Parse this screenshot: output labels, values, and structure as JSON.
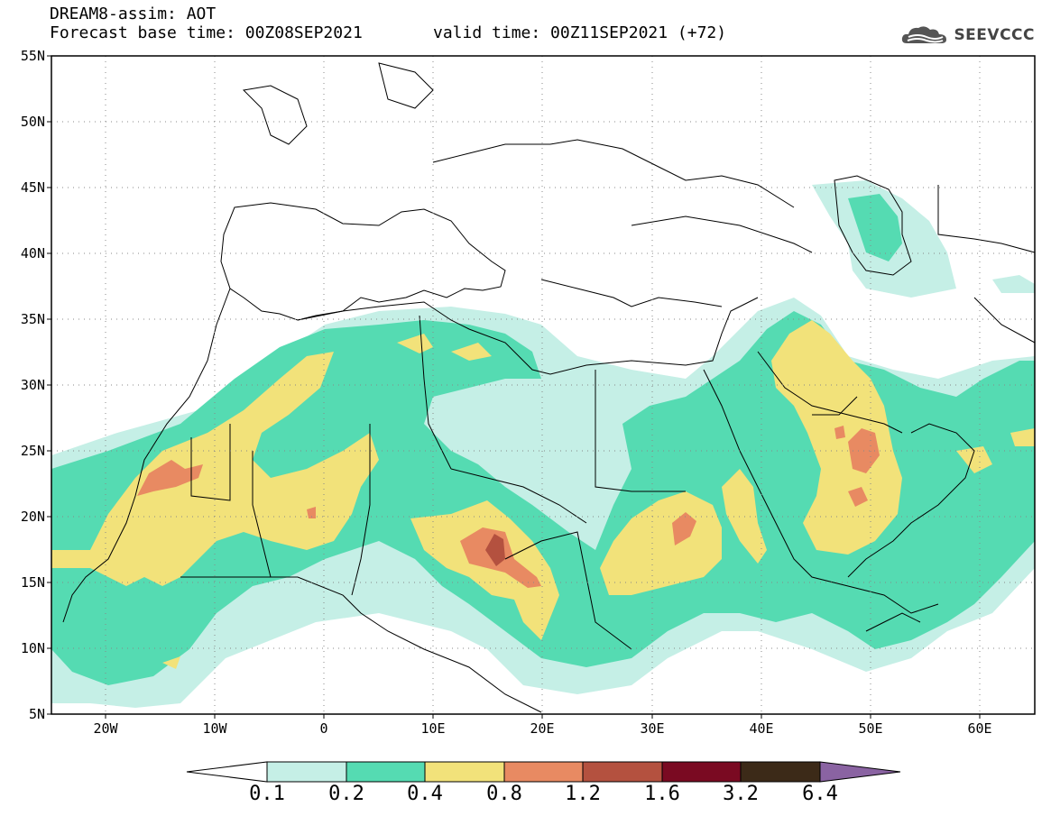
{
  "title": {
    "line1": "DREAM8-assim: AOT",
    "line2": "Forecast base time: 00Z08SEP2021",
    "valid": "valid time: 00Z11SEP2021 (+72)"
  },
  "logo": {
    "text": "SEEVCCC",
    "icon": "cloud-icon"
  },
  "axes": {
    "lat_ticks": [
      "55N",
      "50N",
      "45N",
      "40N",
      "35N",
      "30N",
      "25N",
      "20N",
      "15N",
      "10N",
      "5N"
    ],
    "lon_ticks": [
      "20W",
      "10W",
      "0",
      "10E",
      "20E",
      "30E",
      "40E",
      "50E",
      "60E"
    ],
    "lon_range": [
      -25,
      65
    ],
    "lat_range": [
      5,
      55
    ],
    "grid": "dotted"
  },
  "colorbar": {
    "labels": [
      "0.1",
      "0.2",
      "0.4",
      "0.8",
      "1.2",
      "1.6",
      "3.2",
      "6.4"
    ],
    "colors": [
      "#c5efe6",
      "#55dbb2",
      "#f2e27a",
      "#e88a62",
      "#b4513f",
      "#7a0a22",
      "#3c2a18",
      "#8a63a2"
    ],
    "low_extend_color": "#ffffff",
    "high_extend_color": "#8a63a2"
  }
}
